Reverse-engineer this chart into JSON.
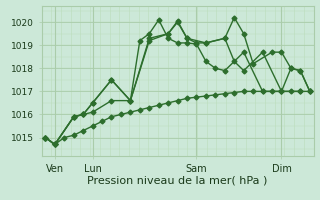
{
  "bg_color": "#cce8d8",
  "grid_color_major": "#aaccaa",
  "grid_color_minor": "#bbddbb",
  "line_color": "#2d6e2d",
  "marker": "D",
  "markersize": 2.5,
  "linewidth": 1.0,
  "xlabel": "Pression niveau de la mer( hPa )",
  "xlabel_fontsize": 8,
  "yticks": [
    1015,
    1016,
    1017,
    1018,
    1019,
    1020
  ],
  "ylim": [
    1014.2,
    1020.7
  ],
  "xlim": [
    -0.2,
    14.2
  ],
  "xtick_positions": [
    0.5,
    2.5,
    8.0,
    12.5
  ],
  "xtick_labels": [
    "Ven",
    "Lun",
    "Sam",
    "Dim"
  ],
  "vlines": [
    0.5,
    2.5,
    8.0,
    12.5
  ],
  "series_x": [
    [
      0,
      0.5,
      1.0,
      1.5,
      2.0,
      2.5,
      3.0,
      3.5,
      4.0,
      4.5,
      5.0,
      5.5,
      6.0,
      6.5,
      7.0,
      7.5,
      8.0,
      8.5,
      9.0,
      9.5,
      10.0,
      10.5,
      11.0,
      11.5,
      12.0,
      12.5,
      13.0,
      13.5,
      14.0
    ],
    [
      0,
      0.5,
      1.5,
      2.0,
      2.5,
      3.5,
      4.5,
      5.0,
      5.5,
      6.0,
      6.5,
      7.0,
      7.5,
      8.0,
      8.5,
      9.0,
      9.5,
      10.5,
      11.5,
      12.5,
      13.5
    ],
    [
      0,
      0.5,
      1.5,
      2.0,
      2.5,
      3.5,
      4.5,
      5.5,
      6.5,
      7.0,
      7.5,
      8.0,
      8.5,
      9.5,
      10.0,
      10.5,
      11.0,
      12.0,
      12.5,
      13.0,
      13.5,
      14.0
    ],
    [
      0,
      0.5,
      1.5,
      2.0,
      2.5,
      3.5,
      4.5,
      5.5,
      6.5,
      7.0,
      7.5,
      8.5,
      9.5,
      10.0,
      10.5,
      11.5,
      12.5,
      13.0,
      13.5,
      14.0
    ]
  ],
  "series_y": [
    [
      1015.0,
      1014.7,
      1015.0,
      1015.1,
      1015.3,
      1015.5,
      1015.7,
      1015.9,
      1016.0,
      1016.1,
      1016.2,
      1016.3,
      1016.4,
      1016.5,
      1016.6,
      1016.7,
      1016.75,
      1016.8,
      1016.85,
      1016.9,
      1016.95,
      1017.0,
      1017.0,
      1017.0,
      1017.0,
      1017.0,
      1017.0,
      1017.0,
      1017.0
    ],
    [
      1015.0,
      1014.7,
      1015.9,
      1016.0,
      1016.5,
      1017.5,
      1016.6,
      1019.2,
      1019.5,
      1020.1,
      1019.3,
      1019.1,
      1019.1,
      1019.05,
      1018.3,
      1018.0,
      1017.9,
      1018.7,
      1017.0,
      1017.0,
      1017.0
    ],
    [
      1015.0,
      1014.7,
      1015.9,
      1016.0,
      1016.5,
      1017.5,
      1016.6,
      1019.3,
      1019.5,
      1020.05,
      1019.3,
      1019.1,
      1019.1,
      1019.3,
      1020.2,
      1019.5,
      1018.2,
      1018.7,
      1018.7,
      1018.0,
      1017.9,
      1017.0
    ],
    [
      1015.0,
      1014.7,
      1015.9,
      1016.0,
      1016.1,
      1016.6,
      1016.6,
      1019.2,
      1019.5,
      1020.0,
      1019.3,
      1019.1,
      1019.3,
      1018.3,
      1017.9,
      1018.7,
      1017.0,
      1018.0,
      1017.9,
      1017.0
    ]
  ]
}
